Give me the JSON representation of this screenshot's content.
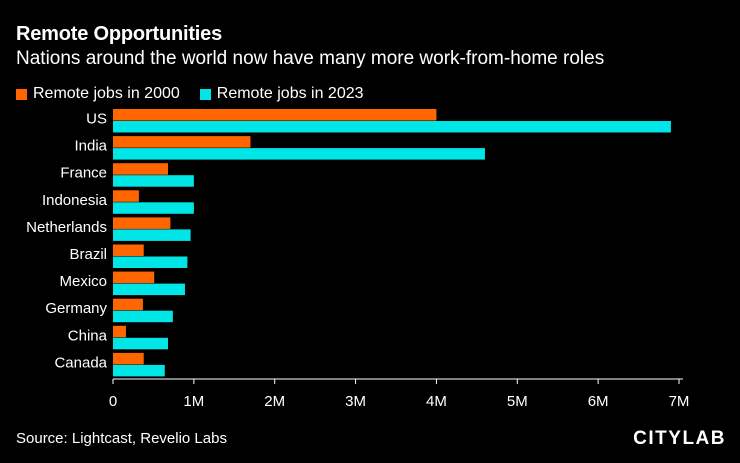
{
  "header": {
    "title": "Remote Opportunities",
    "subtitle": "Nations around the world now have many more work-from-home roles"
  },
  "colors": {
    "series_2000": "#ff6600",
    "series_2023": "#00e5e5",
    "background": "#000000",
    "text": "#ffffff"
  },
  "chart_data": {
    "type": "bar",
    "orientation": "horizontal",
    "title": "Remote Opportunities",
    "subtitle": "Nations around the world now have many more work-from-home roles",
    "categories": [
      "US",
      "India",
      "France",
      "Indonesia",
      "Netherlands",
      "Brazil",
      "Mexico",
      "Germany",
      "China",
      "Canada"
    ],
    "series": [
      {
        "name": "Remote jobs in 2000",
        "color": "#ff6600",
        "values": [
          4000000,
          1700000,
          680000,
          320000,
          710000,
          380000,
          510000,
          370000,
          160000,
          380000
        ]
      },
      {
        "name": "Remote jobs in 2023",
        "color": "#00e5e5",
        "values": [
          6900000,
          4600000,
          1000000,
          1000000,
          960000,
          920000,
          890000,
          740000,
          680000,
          640000
        ]
      }
    ],
    "xlim": [
      0,
      7000000
    ],
    "xticks": [
      0,
      1000000,
      2000000,
      3000000,
      4000000,
      5000000,
      6000000,
      7000000
    ],
    "xtick_labels": [
      "0",
      "1M",
      "2M",
      "3M",
      "4M",
      "5M",
      "6M",
      "7M"
    ],
    "xlabel": "",
    "ylabel": "",
    "legend_position": "top-left",
    "grid": false
  },
  "footer": {
    "source": "Source: Lightcast, Revelio Labs",
    "brand": "CITYLAB"
  }
}
